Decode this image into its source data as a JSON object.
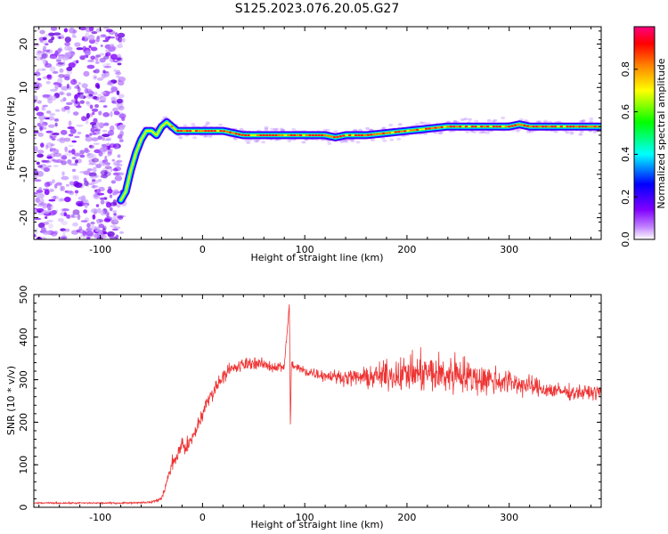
{
  "figure": {
    "title": "S125.2023.076.20.05.G27"
  },
  "chart_data": [
    {
      "type": "heatmap",
      "title": "",
      "xlabel": "Height of straight line (km)",
      "ylabel": "Frequency (Hz)",
      "xlim": [
        -165,
        390
      ],
      "ylim": [
        -25,
        24
      ],
      "x_ticks": [
        -100,
        0,
        100,
        200,
        300
      ],
      "x_tick_labels": [
        "-100",
        "0",
        "100",
        "200",
        "300"
      ],
      "y_ticks": [
        -20,
        -10,
        0,
        10,
        20
      ],
      "y_tick_labels": [
        "-20",
        "-10",
        "0",
        "10",
        "20"
      ],
      "colorbar": {
        "label": "Normalized spectral amplitude",
        "range": [
          0,
          1
        ],
        "ticks": [
          0.0,
          0.2,
          0.4,
          0.6,
          0.8
        ],
        "tick_labels": [
          "0.0",
          "0.2",
          "0.4",
          "0.6",
          "0.8"
        ],
        "colormap": [
          "#ffffff",
          "#8000ff",
          "#0000ff",
          "#00ffff",
          "#00ff00",
          "#ffff00",
          "#ff8000",
          "#ff0000",
          "#ff0080"
        ]
      },
      "frequency_trace": {
        "x": [
          -80,
          -75,
          -70,
          -65,
          -60,
          -55,
          -50,
          -45,
          -40,
          -35,
          -30,
          -25,
          -20,
          -10,
          0,
          20,
          40,
          60,
          80,
          100,
          120,
          130,
          140,
          160,
          180,
          200,
          220,
          240,
          260,
          280,
          300,
          310,
          320,
          340,
          360,
          390
        ],
        "y": [
          -16,
          -14,
          -9,
          -5,
          -2,
          0,
          0,
          -1,
          1,
          2,
          1,
          0,
          0,
          0,
          0,
          0,
          -1,
          -1,
          -1,
          -1,
          -1,
          -1.5,
          -1,
          -1,
          -0.5,
          0,
          0.5,
          1,
          1,
          1,
          1,
          1.5,
          1,
          1,
          1,
          1
        ]
      },
      "noise_region_x": [
        -165,
        -85
      ]
    },
    {
      "type": "line",
      "title": "",
      "xlabel": "Height of straight line (km)",
      "ylabel": "SNR (10 * v/v)",
      "xlim": [
        -165,
        390
      ],
      "ylim": [
        0,
        500
      ],
      "x_ticks": [
        -100,
        0,
        100,
        200,
        300
      ],
      "x_tick_labels": [
        "-100",
        "0",
        "100",
        "200",
        "300"
      ],
      "y_ticks": [
        0,
        100,
        200,
        300,
        400,
        500
      ],
      "y_tick_labels": [
        "0",
        "100",
        "200",
        "300",
        "400",
        "500"
      ],
      "series": [
        {
          "color": "#ee3333",
          "x": [
            -165,
            -120,
            -80,
            -50,
            -40,
            -35,
            -30,
            -25,
            -20,
            -15,
            -10,
            -5,
            0,
            5,
            10,
            15,
            20,
            25,
            30,
            35,
            40,
            50,
            60,
            70,
            80,
            85,
            86,
            87,
            90,
            100,
            120,
            140,
            160,
            180,
            200,
            220,
            240,
            250,
            260,
            280,
            300,
            320,
            340,
            360,
            390
          ],
          "y": [
            10,
            10,
            10,
            12,
            20,
            60,
            100,
            120,
            150,
            140,
            160,
            190,
            220,
            250,
            270,
            290,
            310,
            320,
            325,
            330,
            335,
            340,
            335,
            330,
            330,
            480,
            180,
            340,
            330,
            320,
            310,
            305,
            305,
            310,
            315,
            315,
            310,
            320,
            305,
            300,
            295,
            285,
            275,
            270,
            270
          ],
          "noise_amplitude": [
            3,
            3,
            3,
            3,
            8,
            15,
            25,
            30,
            35,
            35,
            30,
            30,
            30,
            25,
            25,
            25,
            25,
            25,
            25,
            25,
            25,
            20,
            20,
            20,
            20,
            0,
            0,
            20,
            20,
            20,
            20,
            25,
            35,
            50,
            60,
            70,
            70,
            75,
            60,
            55,
            45,
            35,
            30,
            25,
            25
          ]
        }
      ]
    }
  ]
}
